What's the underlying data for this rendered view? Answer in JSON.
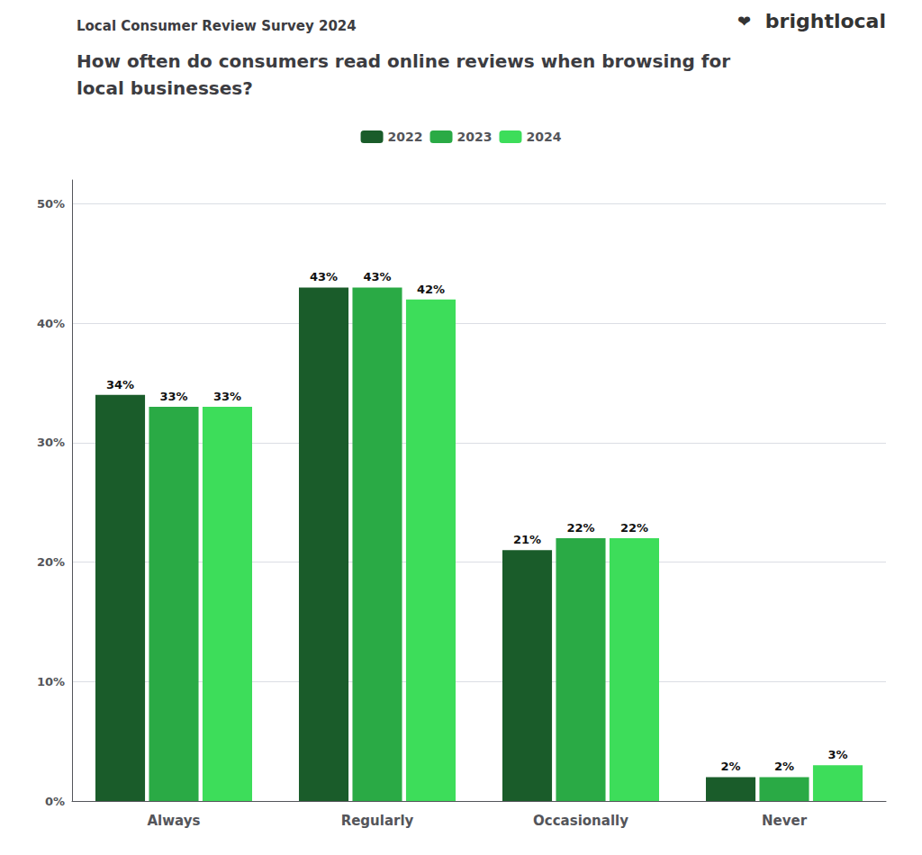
{
  "chart_data": {
    "type": "bar",
    "subtitle": "Local Consumer Review Survey 2024",
    "title": "How often do consumers read online reviews when browsing for\nlocal businesses?",
    "annotations": [
      "brightlocal",
      "❤"
    ],
    "categories": [
      "Always",
      "Regularly",
      "Occasionally",
      "Never"
    ],
    "series": [
      {
        "name": "2022",
        "color": "#1a5c2a",
        "values": [
          34,
          43,
          21,
          2
        ],
        "value_labels": [
          "34%",
          "43%",
          "21%",
          "2%"
        ]
      },
      {
        "name": "2023",
        "color": "#2aaa45",
        "values": [
          33,
          43,
          22,
          2
        ],
        "value_labels": [
          "33%",
          "43%",
          "22%",
          "2%"
        ]
      },
      {
        "name": "2024",
        "color": "#3ddd5a",
        "values": [
          33,
          42,
          22,
          3
        ],
        "value_labels": [
          "33%",
          "42%",
          "22%",
          "3%"
        ]
      }
    ],
    "ylim": [
      0,
      52
    ],
    "yticks": [
      {
        "value": 0,
        "label": "0%"
      },
      {
        "value": 10,
        "label": "10%"
      },
      {
        "value": 20,
        "label": "20%"
      },
      {
        "value": 30,
        "label": "30%"
      },
      {
        "value": 40,
        "label": "40%"
      },
      {
        "value": 50,
        "label": "50%"
      }
    ],
    "grid": true,
    "legend": "top",
    "data_labels": true
  }
}
